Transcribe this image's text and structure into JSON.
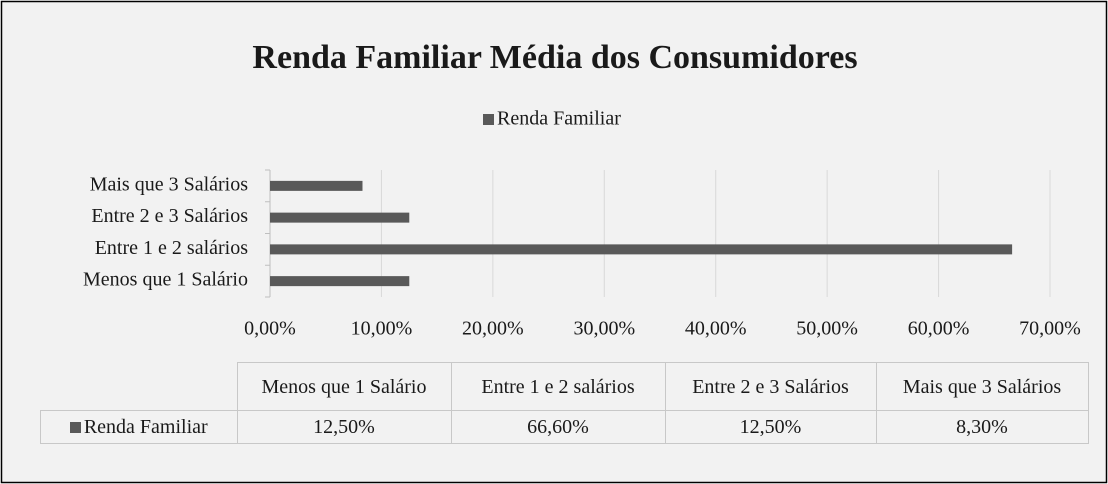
{
  "chart_data": {
    "type": "bar",
    "orientation": "horizontal",
    "title": "Renda Familiar Média dos Consumidores",
    "categories": [
      "Menos que 1 Salário",
      "Entre 1 e 2 salários",
      "Entre 2 e 3 Salários",
      "Mais que 3 Salários"
    ],
    "series": [
      {
        "name": "Renda Familiar",
        "color": "#595959",
        "values": [
          12.5,
          66.6,
          12.5,
          8.3
        ],
        "value_labels": [
          "12,50%",
          "66,60%",
          "12,50%",
          "8,30%"
        ]
      }
    ],
    "xlim": [
      0,
      70
    ],
    "xticks": [
      {
        "value": 0,
        "label": "0,00%"
      },
      {
        "value": 10,
        "label": "10,00%"
      },
      {
        "value": 20,
        "label": "20,00%"
      },
      {
        "value": 30,
        "label": "30,00%"
      },
      {
        "value": 40,
        "label": "40,00%"
      },
      {
        "value": 50,
        "label": "50,00%"
      },
      {
        "value": 60,
        "label": "60,00%"
      },
      {
        "value": 70,
        "label": "70,00%"
      }
    ],
    "grid": true,
    "legend": "top",
    "data_table": true
  }
}
